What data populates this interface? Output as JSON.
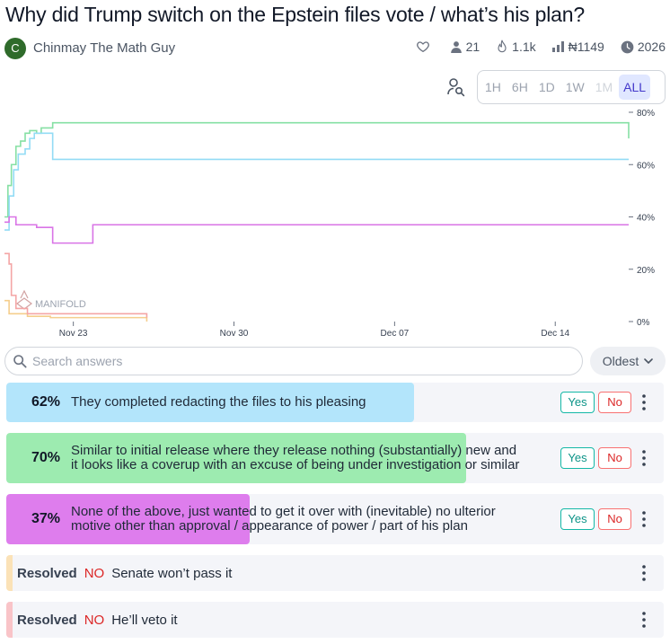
{
  "title": "Why did Trump switch on the Epstein files vote / what’s his plan?",
  "author": {
    "initial": "C",
    "name": "Chinmay The Math Guy"
  },
  "stats": {
    "traders": "21",
    "views": "1.1k",
    "volume": "₦1149",
    "close_year": "2026"
  },
  "time_ranges": [
    "1H",
    "6H",
    "1D",
    "1W",
    "1M",
    "ALL"
  ],
  "time_range_state": {
    "disabled": "1M",
    "selected": "ALL"
  },
  "search": {
    "placeholder": "Search answers"
  },
  "sort": {
    "label": "Oldest"
  },
  "watermark": "MANIFOLD",
  "chart_data": {
    "type": "line",
    "x_ticks": [
      "Nov 23",
      "Nov 30",
      "Dec 07",
      "Dec 14"
    ],
    "y_ticks": [
      "80%",
      "60%",
      "40%",
      "20%",
      "0%"
    ],
    "ylim": [
      0,
      80
    ],
    "x_start_day": 20.0,
    "x_end_day": 47.2,
    "colors": {
      "redacting": "#93dcf5",
      "coverup": "#86e0a4",
      "none": "#d974e6",
      "senate": "#f5ce8c",
      "veto": "#f4a5a5"
    },
    "series": [
      {
        "name": "Similar to initial release",
        "key": "coverup",
        "points": [
          [
            20.0,
            40
          ],
          [
            20.15,
            52
          ],
          [
            20.3,
            60
          ],
          [
            20.5,
            67
          ],
          [
            20.7,
            69
          ],
          [
            20.9,
            72
          ],
          [
            21.1,
            73
          ],
          [
            21.4,
            72
          ],
          [
            21.6,
            74
          ],
          [
            21.9,
            74
          ],
          [
            22.1,
            76
          ],
          [
            47.2,
            70
          ]
        ]
      },
      {
        "name": "They completed redacting",
        "key": "redacting",
        "points": [
          [
            20.0,
            35
          ],
          [
            20.2,
            48
          ],
          [
            20.4,
            58
          ],
          [
            20.6,
            64
          ],
          [
            20.9,
            66
          ],
          [
            21.1,
            70
          ],
          [
            21.3,
            72
          ],
          [
            21.6,
            72
          ],
          [
            21.9,
            72
          ],
          [
            22.1,
            62
          ],
          [
            47.2,
            62
          ]
        ]
      },
      {
        "name": "None of the above",
        "key": "none",
        "points": [
          [
            20.0,
            38
          ],
          [
            20.2,
            40
          ],
          [
            20.5,
            37
          ],
          [
            21.0,
            37
          ],
          [
            21.4,
            36
          ],
          [
            22.1,
            30
          ],
          [
            23.8,
            30
          ],
          [
            23.85,
            37
          ],
          [
            47.2,
            37
          ]
        ]
      },
      {
        "name": "Senate won't pass it",
        "key": "senate",
        "points": [
          [
            20.0,
            8
          ],
          [
            20.2,
            3
          ],
          [
            21.0,
            2
          ],
          [
            22.0,
            1.5
          ],
          [
            26.0,
            1.5
          ],
          [
            26.2,
            0
          ]
        ]
      },
      {
        "name": "He'll veto it",
        "key": "veto",
        "points": [
          [
            20.0,
            26
          ],
          [
            20.2,
            22
          ],
          [
            20.3,
            10
          ],
          [
            20.5,
            5
          ],
          [
            21.0,
            3
          ],
          [
            26.2,
            1.5
          ]
        ]
      }
    ]
  },
  "answers": [
    {
      "prob": "62%",
      "prob_value": 62,
      "bar_fill": 0.62,
      "text": "They completed redacting the files to his pleasing",
      "color": "#b3e5fb",
      "yes": "Yes",
      "no": "No"
    },
    {
      "prob": "70%",
      "prob_value": 70,
      "bar_fill": 0.7,
      "text_lines": [
        "Similar to initial release where they release nothing (substantially) new and",
        "it looks like a coverup with an excuse of being under investigation or similar"
      ],
      "color": "#9debb0",
      "yes": "Yes",
      "no": "No"
    },
    {
      "prob": "37%",
      "prob_value": 37,
      "bar_fill": 0.37,
      "text_lines": [
        "None of the above, just wanted to get it over with (inevitable) no ulterior",
        "motive other than approval / appearance of power / part of his plan"
      ],
      "color": "#de7ded",
      "yes": "Yes",
      "no": "No"
    }
  ],
  "resolved": [
    {
      "label": "Resolved",
      "outcome": "NO",
      "text": "Senate won’t pass it",
      "color": "#fbe2b7"
    },
    {
      "label": "Resolved",
      "outcome": "NO",
      "text": "He’ll veto it",
      "color": "#f9c4c8"
    }
  ]
}
